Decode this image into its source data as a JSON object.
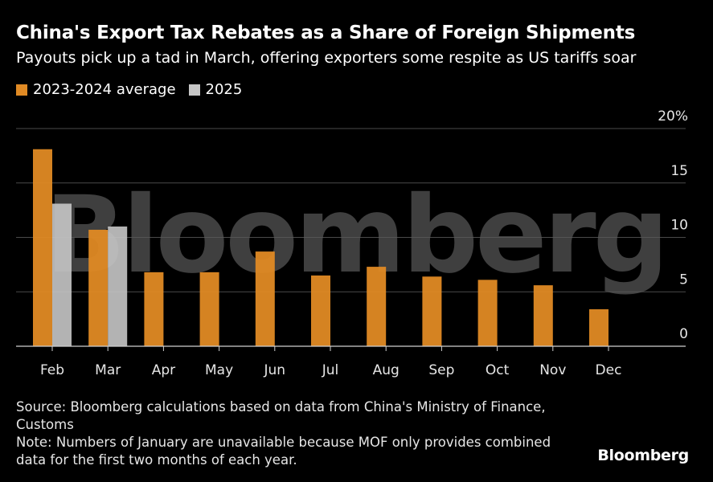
{
  "title": "China's Export Tax Rebates as a Share of Foreign Shipments",
  "subtitle": "Payouts pick up a tad in March, offering exporters some respite as US tariffs soar",
  "colors": {
    "avg": "#e08a24",
    "y2025": "#c6c6c6",
    "grid": "#4a4a4a",
    "text": "#e6e6e6"
  },
  "chart_data": {
    "type": "bar",
    "categories": [
      "Feb",
      "Mar",
      "Apr",
      "May",
      "Jun",
      "Jul",
      "Aug",
      "Sep",
      "Oct",
      "Nov",
      "Dec"
    ],
    "series": [
      {
        "name": "2023-2024 average",
        "values": [
          18.1,
          10.7,
          6.8,
          6.8,
          8.7,
          6.5,
          7.3,
          6.4,
          6.1,
          5.6,
          3.4
        ]
      },
      {
        "name": "2025",
        "values": [
          13.1,
          11.0,
          null,
          null,
          null,
          null,
          null,
          null,
          null,
          null,
          null
        ]
      }
    ],
    "ylim": [
      0,
      20
    ],
    "yticks": [
      0,
      5,
      10,
      15,
      20
    ],
    "ytick_labels": [
      "0",
      "5",
      "10",
      "15",
      "20%"
    ],
    "grid": true,
    "legend_position": "top-left",
    "watermark": "Bloomberg"
  },
  "source": "Source: Bloomberg calculations based on data from China's Ministry of Finance, Customs",
  "note": "Note: Numbers of January are unavailable because MOF only provides combined data for the first two months of each year.",
  "brand": "Bloomberg"
}
